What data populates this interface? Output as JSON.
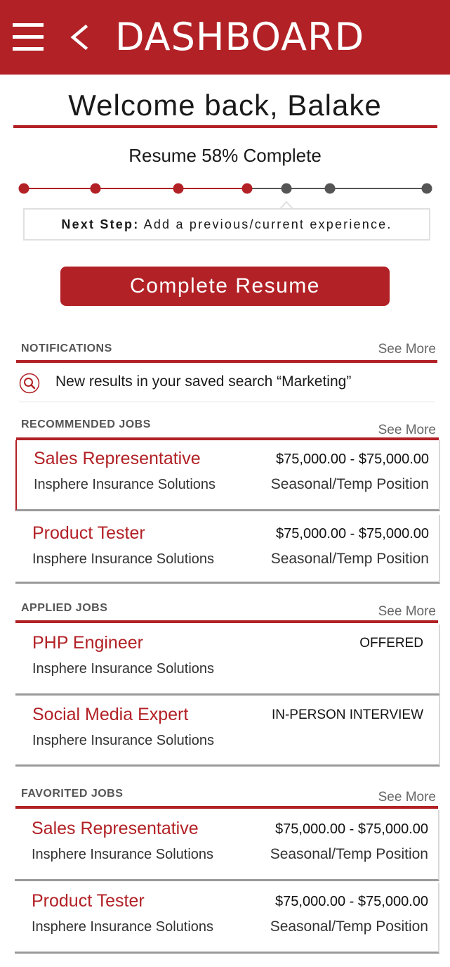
{
  "header": {
    "title": "DASHBOARD",
    "menu_icon": "hamburger-icon",
    "back_icon": "chevron-left-icon"
  },
  "welcome": "Welcome back, Balake",
  "resume": {
    "progress_label": "Resume 58% Complete",
    "progress_percent": 58,
    "steps_total": 7,
    "steps_completed": 4,
    "next_step_label": "Next Step:",
    "next_step_text": "Add a previous/current experience.",
    "complete_button": "Complete Resume"
  },
  "notifications": {
    "title": "NOTIFICATIONS",
    "see_more": "See More",
    "items": [
      {
        "icon": "search-icon",
        "text": "New results in your saved search “Marketing”"
      }
    ]
  },
  "recommended": {
    "title": "RECOMMENDED JOBS",
    "see_more": "See More",
    "jobs": [
      {
        "title": "Sales Representative",
        "company": "Insphere Insurance Solutions",
        "salary": "$75,000.00 - $75,000.00",
        "type": "Seasonal/Temp Position"
      },
      {
        "title": "Product Tester",
        "company": "Insphere Insurance Solutions",
        "salary": "$75,000.00 - $75,000.00",
        "type": "Seasonal/Temp Position"
      }
    ]
  },
  "applied": {
    "title": "APPLIED JOBS",
    "see_more": "See More",
    "jobs": [
      {
        "title": "PHP Engineer",
        "company": "Insphere Insurance Solutions",
        "status": "OFFERED"
      },
      {
        "title": "Social Media Expert",
        "company": "Insphere Insurance Solutions",
        "status": "IN-PERSON INTERVIEW"
      }
    ]
  },
  "favorited": {
    "title": "FAVORITED JOBS",
    "see_more": "See More",
    "jobs": [
      {
        "title": "Sales Representative",
        "company": "Insphere Insurance Solutions",
        "salary": "$75,000.00 - $75,000.00",
        "type": "Seasonal/Temp Position"
      },
      {
        "title": "Product Tester",
        "company": "Insphere Insurance Solutions",
        "salary": "$75,000.00 - $75,000.00",
        "type": "Seasonal/Temp Position"
      }
    ]
  },
  "colors": {
    "brand_red": "#b22126",
    "step_incomplete": "#555555",
    "text_muted": "#666666"
  }
}
